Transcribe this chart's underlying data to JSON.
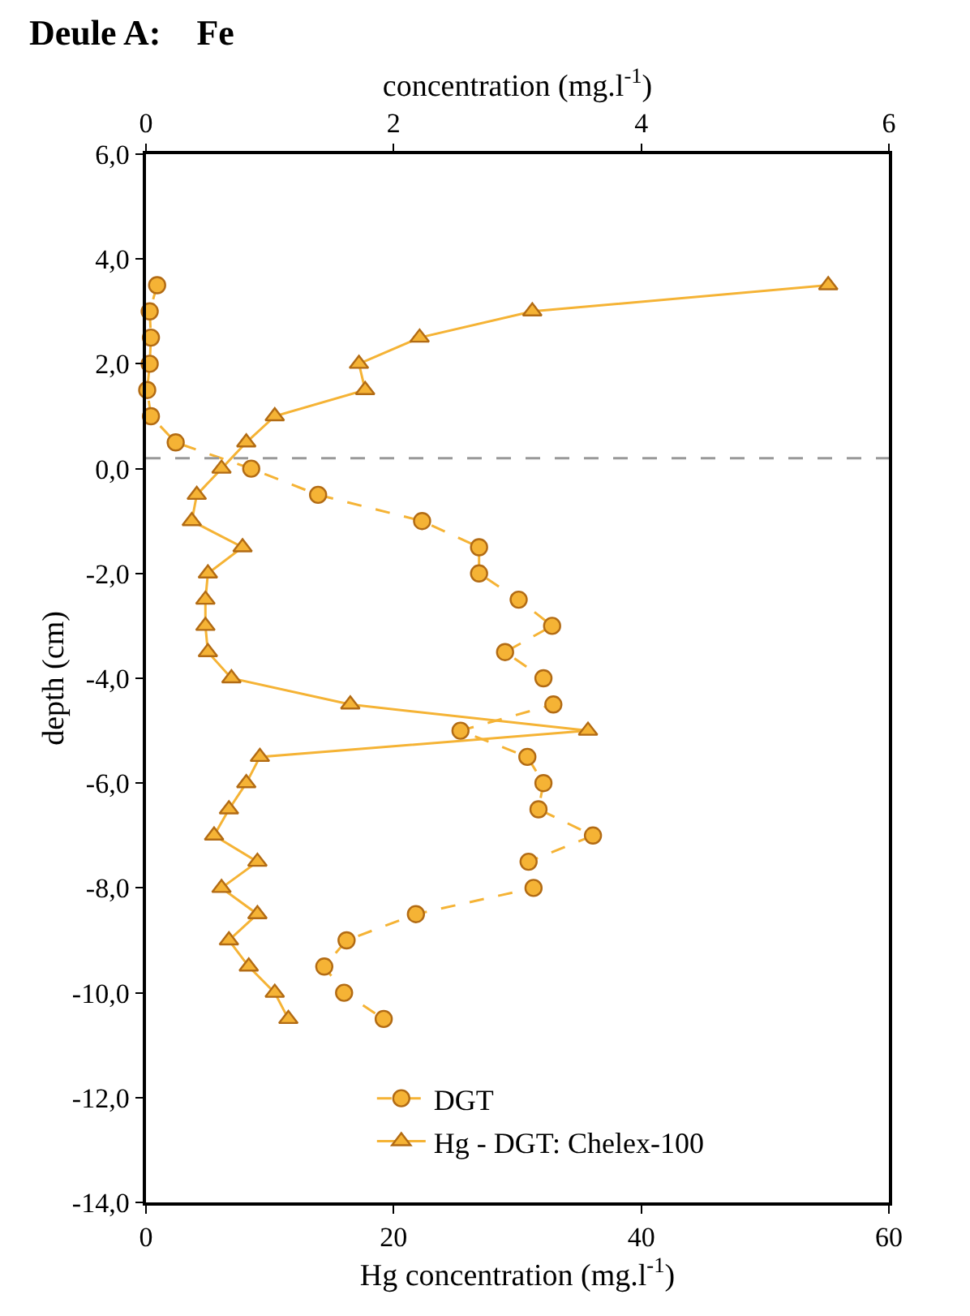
{
  "chart_data": {
    "type": "line",
    "title": "Deule A:    Fe",
    "xlabel": "Hg concentration (mg.l$^{-1}$)",
    "x2label": "concentration (mg.l$^{-1}$)",
    "ylabel": "depth (cm)",
    "xlim": [
      0,
      60
    ],
    "xticks": [
      0,
      20,
      40,
      60
    ],
    "x2lim": [
      0,
      6
    ],
    "x2ticks": [
      0,
      2,
      4,
      6
    ],
    "ylim": [
      -14,
      6
    ],
    "yticks": [
      {
        "value": -14,
        "label": "-14,0"
      },
      {
        "value": -12,
        "label": "-12,0"
      },
      {
        "value": -10,
        "label": "-10,0"
      },
      {
        "value": -8,
        "label": "-8,0"
      },
      {
        "value": -6,
        "label": "-6,0"
      },
      {
        "value": -4,
        "label": "-4,0"
      },
      {
        "value": -2,
        "label": "-2,0"
      },
      {
        "value": 0,
        "label": "0,0"
      },
      {
        "value": 2,
        "label": "2,0"
      },
      {
        "value": 4,
        "label": "4,0"
      },
      {
        "value": 6,
        "label": "6,0"
      }
    ],
    "legend": "bottom",
    "ref_lines": [
      {
        "axis": "y",
        "value": 0.2,
        "color": "#999999",
        "line_style": "dashed"
      }
    ],
    "series": [
      {
        "name": "DGT",
        "axis": "x2",
        "color": "#f5b335",
        "marker": "circle",
        "line_style": "dashed",
        "x": [
          0.09,
          0.03,
          0.04,
          0.03,
          0.01,
          0.04,
          0.24,
          0.85,
          1.39,
          2.23,
          2.69,
          2.69,
          3.01,
          3.28,
          2.9,
          3.21,
          3.29,
          2.54,
          3.08,
          3.21,
          3.17,
          3.61,
          3.09,
          3.13,
          2.18,
          1.62,
          1.44,
          1.6,
          1.92
        ],
        "values": [
          3.5,
          3.0,
          2.5,
          2.0,
          1.5,
          1.0,
          0.5,
          0.0,
          -0.5,
          -1.0,
          -1.5,
          -2.0,
          -2.5,
          -3.0,
          -3.5,
          -4.0,
          -4.5,
          -5.0,
          -5.5,
          -6.0,
          -6.5,
          -7.0,
          -7.5,
          -8.0,
          -8.5,
          -9.0,
          -9.5,
          -10.0,
          -10.5
        ]
      },
      {
        "name": "Hg - DGT: Chelex-100",
        "color": "#f5b335",
        "marker": "triangle",
        "line_style": "solid",
        "x": [
          55.1,
          31.2,
          22.1,
          17.2,
          17.7,
          10.4,
          8.1,
          6.1,
          4.1,
          3.7,
          7.8,
          5.0,
          4.8,
          4.8,
          5.0,
          6.9,
          16.5,
          35.7,
          9.2,
          8.1,
          6.7,
          5.5,
          9.0,
          6.1,
          9.0,
          6.7,
          8.3,
          10.4,
          11.5
        ],
        "values": [
          3.5,
          3.0,
          2.5,
          2.0,
          1.5,
          1.0,
          0.5,
          0.0,
          -0.5,
          -1.0,
          -1.5,
          -2.0,
          -2.5,
          -3.0,
          -3.5,
          -4.0,
          -4.5,
          -5.0,
          -5.5,
          -6.0,
          -6.5,
          -7.0,
          -7.5,
          -8.0,
          -8.5,
          -9.0,
          -9.5,
          -10.0,
          -10.5
        ]
      }
    ]
  }
}
